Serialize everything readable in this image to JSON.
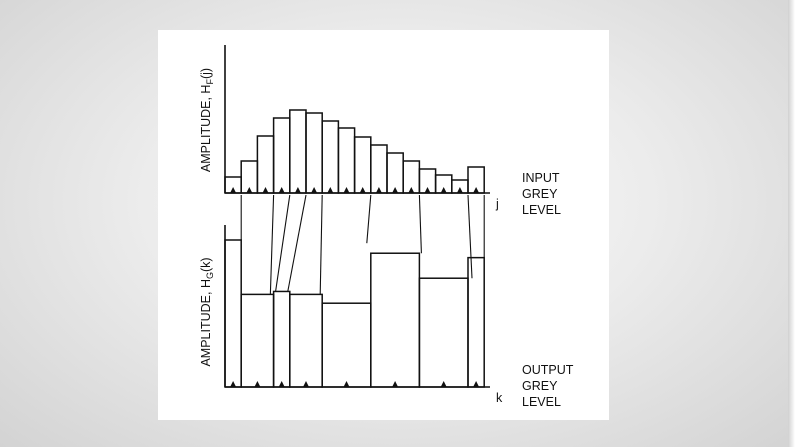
{
  "chart_data": [
    {
      "type": "bar",
      "name": "input-histogram",
      "ylabel_main": "AMPLITUDE, H",
      "ylabel_sub": "F",
      "ylabel_tail": "(j)",
      "xlabel": "j",
      "side_label": [
        "INPUT",
        "GREY",
        "LEVEL"
      ],
      "ylim": [
        0,
        100
      ],
      "values": [
        16,
        32,
        57,
        75,
        83,
        80,
        72,
        65,
        56,
        48,
        40,
        32,
        24,
        18,
        13,
        26
      ]
    },
    {
      "type": "bar",
      "name": "output-histogram",
      "ylabel_main": "AMPLITUDE, H",
      "ylabel_sub": "G",
      "ylabel_tail": "(k)",
      "xlabel": "k",
      "side_label": [
        "OUTPUT",
        "GREY",
        "LEVEL"
      ],
      "ylim": [
        0,
        100
      ],
      "values": [
        100,
        63,
        65,
        63,
        57,
        91,
        74,
        88
      ],
      "input_groups": [
        [
          0,
          0
        ],
        [
          1,
          2
        ],
        [
          3,
          3
        ],
        [
          4,
          5
        ],
        [
          6,
          8
        ],
        [
          9,
          11
        ],
        [
          12,
          14
        ],
        [
          15,
          15
        ]
      ]
    }
  ]
}
